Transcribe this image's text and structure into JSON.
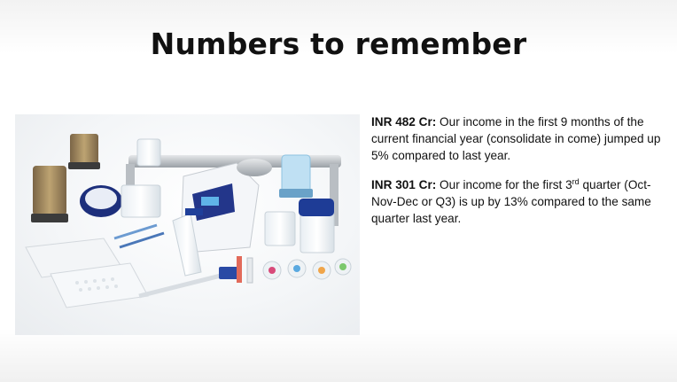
{
  "slide": {
    "title": "Numbers to remember",
    "photo_alt": "Laboratory filtration equipment",
    "points": [
      {
        "lead": "INR 482 Cr:",
        "text": " Our income in the first 9 months of the current financial year (consolidate in come) jumped up 5% compared to last year."
      },
      {
        "lead": "INR 301 Cr:",
        "text_before_sup": " Our income for the first 3",
        "sup": "rd",
        "text_after_sup": " quarter (Oct-Nov-Dec or Q3) is up by 13% compared to the same quarter last year."
      }
    ]
  },
  "colors": {
    "title": "#111111",
    "accent_blue": "#1f3f9a",
    "amber": "#8a6a3a"
  },
  "icons": [
    "lab-equipment-photo"
  ]
}
